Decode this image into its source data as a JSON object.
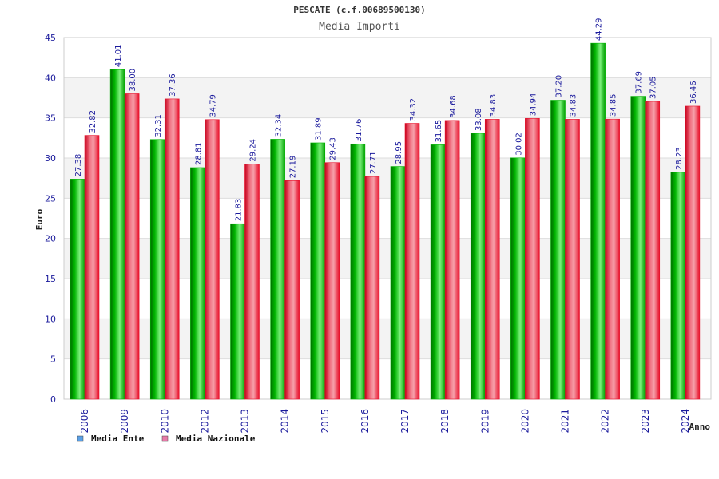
{
  "chart_data": {
    "type": "bar",
    "title": "PESCATE (c.f.00689500130)",
    "subtitle": "Media Importi",
    "xlabel": "Anno",
    "ylabel": "Euro",
    "ylim": [
      0,
      45
    ],
    "yticks": [
      0,
      5,
      10,
      15,
      20,
      25,
      30,
      35,
      40,
      45
    ],
    "grid": true,
    "legend_position": "bottom-left",
    "categories": [
      "2006",
      "2009",
      "2010",
      "2012",
      "2013",
      "2014",
      "2015",
      "2016",
      "2017",
      "2018",
      "2019",
      "2020",
      "2021",
      "2022",
      "2023",
      "2024"
    ],
    "series": [
      {
        "name": "Media Ente",
        "color": "#00b400",
        "legend_color": "#5aa0e6",
        "values": [
          27.38,
          41.01,
          32.31,
          28.81,
          21.83,
          32.34,
          31.89,
          31.76,
          28.95,
          31.65,
          33.08,
          30.02,
          37.2,
          44.29,
          37.69,
          28.23
        ],
        "labels": [
          "27.38",
          "41.01",
          "32.31",
          "28.81",
          "21.83",
          "32.34",
          "31.89",
          "31.76",
          "28.95",
          "31.65",
          "33.08",
          "30.02",
          "37.20",
          "44.29",
          "37.69",
          "28.23"
        ]
      },
      {
        "name": "Media Nazionale",
        "color": "#e8102a",
        "legend_color": "#e67aa8",
        "values": [
          32.82,
          38.0,
          37.36,
          34.79,
          29.24,
          27.19,
          29.43,
          27.71,
          34.32,
          34.68,
          34.83,
          34.94,
          34.83,
          34.85,
          37.05,
          36.46
        ],
        "labels": [
          "32.82",
          "38.00",
          "37.36",
          "34.79",
          "29.24",
          "27.19",
          "29.43",
          "27.71",
          "34.32",
          "34.68",
          "34.83",
          "34.94",
          "34.83",
          "34.85",
          "37.05",
          "36.46"
        ]
      }
    ]
  }
}
